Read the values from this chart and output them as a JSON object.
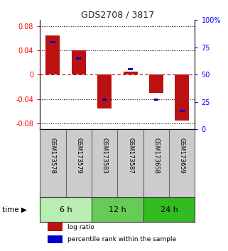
{
  "title": "GDS2708 / 3817",
  "samples": [
    "GSM173578",
    "GSM173579",
    "GSM173583",
    "GSM173587",
    "GSM173658",
    "GSM173659"
  ],
  "log_ratios": [
    0.065,
    0.04,
    -0.055,
    0.005,
    -0.03,
    -0.075
  ],
  "percentile_ranks": [
    0.8,
    0.65,
    0.27,
    0.55,
    0.27,
    0.17
  ],
  "time_groups": [
    {
      "label": "6 h",
      "indices": [
        0,
        1
      ],
      "color": "#b8efb0"
    },
    {
      "label": "12 h",
      "indices": [
        2,
        3
      ],
      "color": "#66cc55"
    },
    {
      "label": "24 h",
      "indices": [
        4,
        5
      ],
      "color": "#33bb22"
    }
  ],
  "bar_color": "#bb1111",
  "percentile_color": "#0000cc",
  "ylim_left": [
    -0.09,
    0.09
  ],
  "ylim_right": [
    0,
    100
  ],
  "yticks_left": [
    -0.08,
    -0.04,
    0,
    0.04,
    0.08
  ],
  "yticks_right": [
    0,
    25,
    50,
    75,
    100
  ],
  "bar_width": 0.55,
  "percentile_bar_width": 0.18,
  "background_color": "#ffffff",
  "plot_bg_color": "#ffffff",
  "label_log_ratio": "log ratio",
  "label_percentile": "percentile rank within the sample",
  "time_label": "time",
  "zero_line_color": "#cc0000",
  "title_color": "#222222",
  "sample_bg_color": "#cccccc"
}
